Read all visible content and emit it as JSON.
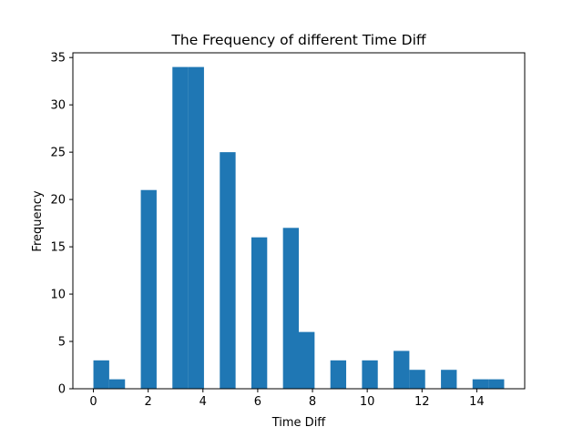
{
  "chart_data": {
    "type": "bar",
    "title": "The Frequency of different Time Diff",
    "xlabel": "Time Diff",
    "ylabel": "Frequency",
    "xlim": [
      -0.75,
      15.75
    ],
    "ylim": [
      0,
      35.5
    ],
    "xticks": [
      0,
      2,
      4,
      6,
      8,
      10,
      12,
      14
    ],
    "yticks": [
      0,
      5,
      10,
      15,
      20,
      25,
      30,
      35
    ],
    "bar_color": "#1f77b4",
    "grid": false,
    "legend": "none",
    "bins": [
      {
        "x0": 0.0,
        "x1": 0.577,
        "value": 3
      },
      {
        "x0": 0.577,
        "x1": 1.154,
        "value": 1
      },
      {
        "x0": 1.731,
        "x1": 2.308,
        "value": 21
      },
      {
        "x0": 2.885,
        "x1": 3.462,
        "value": 34
      },
      {
        "x0": 3.462,
        "x1": 4.038,
        "value": 34
      },
      {
        "x0": 4.615,
        "x1": 5.192,
        "value": 25
      },
      {
        "x0": 5.769,
        "x1": 6.346,
        "value": 16
      },
      {
        "x0": 6.923,
        "x1": 7.5,
        "value": 17
      },
      {
        "x0": 7.5,
        "x1": 8.077,
        "value": 6
      },
      {
        "x0": 8.654,
        "x1": 9.231,
        "value": 3
      },
      {
        "x0": 9.808,
        "x1": 10.385,
        "value": 3
      },
      {
        "x0": 10.962,
        "x1": 11.538,
        "value": 4
      },
      {
        "x0": 11.538,
        "x1": 12.115,
        "value": 2
      },
      {
        "x0": 12.692,
        "x1": 13.269,
        "value": 2
      },
      {
        "x0": 13.846,
        "x1": 14.423,
        "value": 1
      },
      {
        "x0": 14.423,
        "x1": 15.0,
        "value": 1
      }
    ]
  }
}
